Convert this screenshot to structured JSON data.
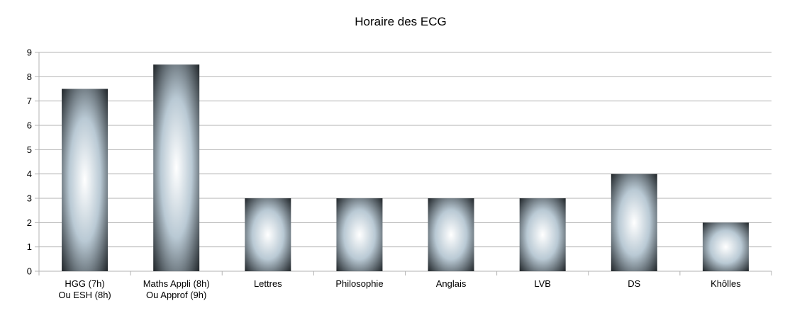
{
  "chart_data": {
    "type": "bar",
    "title": "Horaire des ECG",
    "xlabel": "",
    "ylabel": "",
    "ylim": [
      0,
      9
    ],
    "yticks": [
      0,
      1,
      2,
      3,
      4,
      5,
      6,
      7,
      8,
      9
    ],
    "grid": true,
    "legend": "none",
    "categories": [
      [
        "HGG (7h)",
        "Ou ESH (8h)"
      ],
      [
        "Maths Appli (8h)",
        "Ou Approf (9h)"
      ],
      [
        "Lettres"
      ],
      [
        "Philosophie"
      ],
      [
        "Anglais"
      ],
      [
        "LVB"
      ],
      [
        "DS"
      ],
      [
        "Khôlles"
      ]
    ],
    "values": [
      7.5,
      8.5,
      3,
      3,
      3,
      3,
      4,
      2
    ],
    "colors": {
      "bar_center": "#ffffff",
      "bar_mid": "#b9c9d4",
      "bar_edge": "#0d1114",
      "grid": "#b3b3b3"
    }
  }
}
